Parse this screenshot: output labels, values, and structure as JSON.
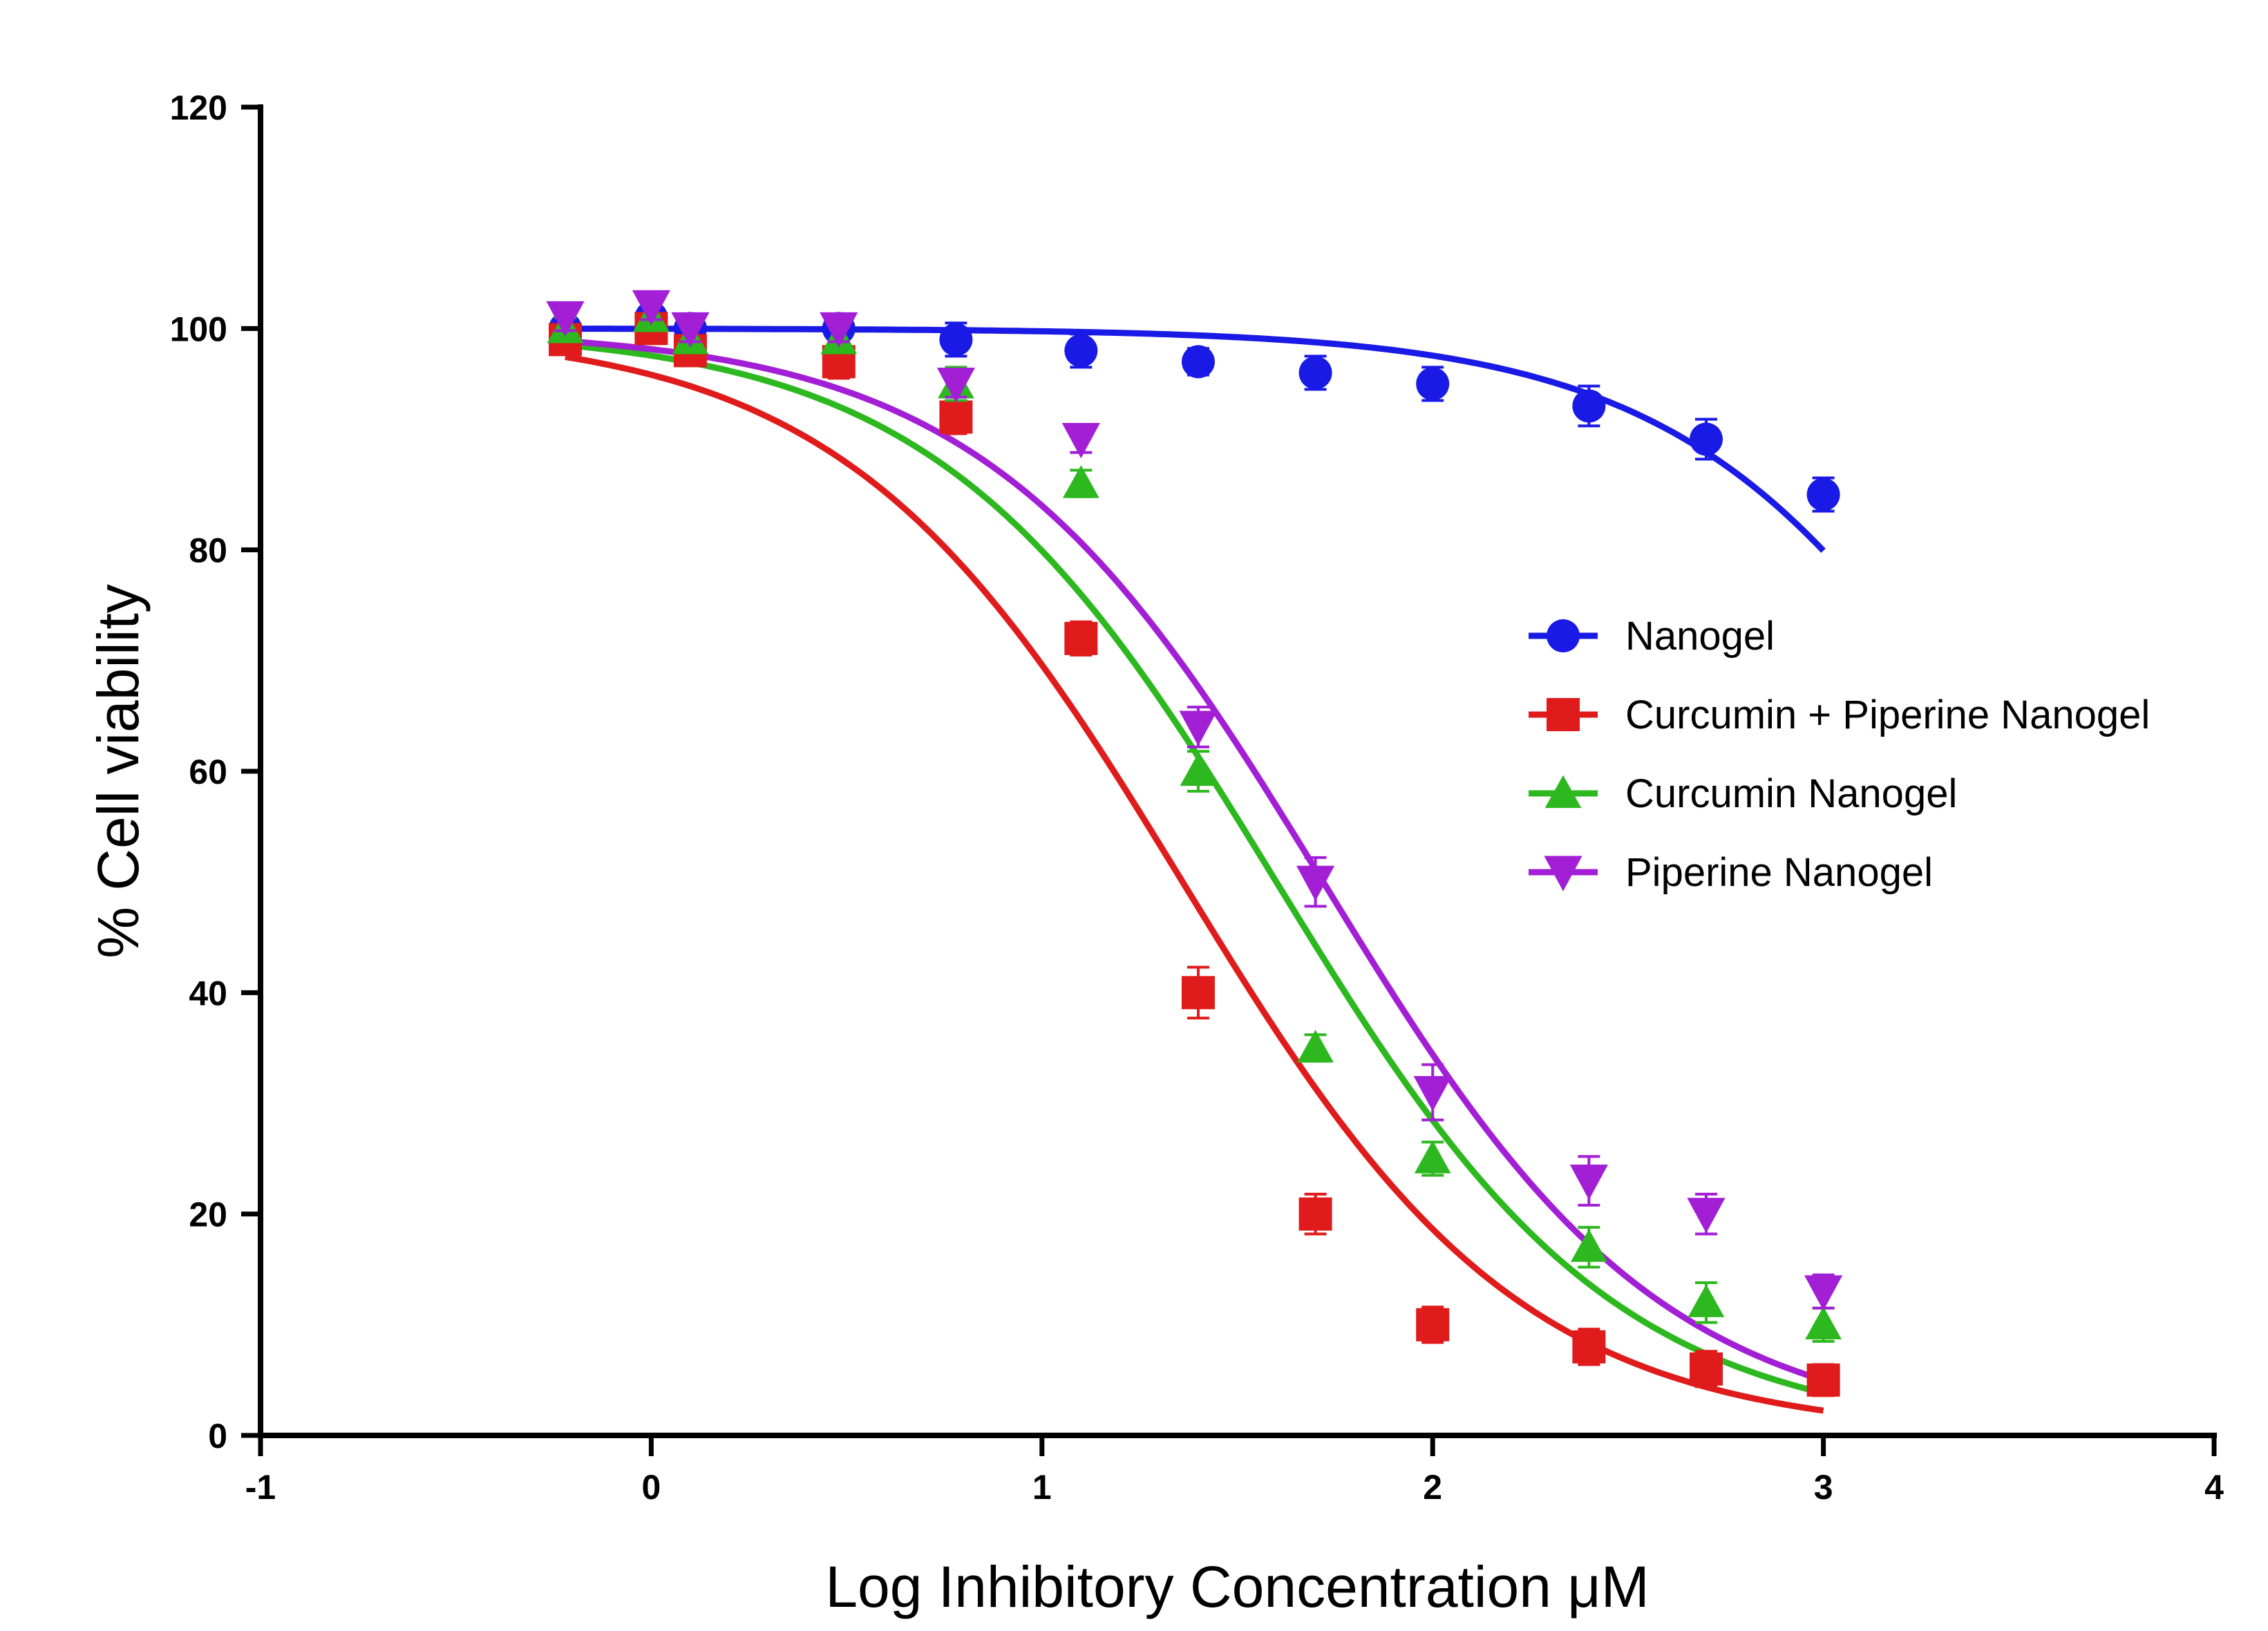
{
  "chart_data": {
    "type": "scatter",
    "title": "",
    "xlabel": "Log Inhibitory Concentration μM",
    "ylabel": "% Cell viability",
    "xlim": [
      -1,
      4
    ],
    "ylim": [
      0,
      120
    ],
    "x_ticks": [
      -1,
      0,
      1,
      2,
      3,
      4
    ],
    "y_ticks": [
      0,
      20,
      40,
      60,
      80,
      100,
      120
    ],
    "grid": false,
    "legend_position": "right-middle",
    "series": [
      {
        "name": "Nanogel",
        "color": "#1a1ae6",
        "marker": "circle",
        "x": [
          -0.22,
          0,
          0.1,
          0.48,
          0.78,
          1.1,
          1.4,
          1.7,
          2.0,
          2.4,
          2.7,
          3.0
        ],
        "y": [
          100,
          101,
          100,
          100,
          99,
          98,
          97,
          96,
          95,
          93,
          90,
          85
        ],
        "error": [
          1,
          1.5,
          1.2,
          1,
          1.5,
          1.5,
          1.2,
          1.5,
          1.5,
          1.8,
          1.8,
          1.5
        ],
        "fit": {
          "top": 100,
          "bottom": 0,
          "logIC50": 3.6,
          "hill": 1.0,
          "x_from": -0.22,
          "x_to": 3.0
        }
      },
      {
        "name": "Curcumin + Piperine Nanogel",
        "color": "#e01b1b",
        "marker": "square",
        "x": [
          -0.22,
          0,
          0.1,
          0.48,
          0.78,
          1.1,
          1.4,
          1.7,
          2.0,
          2.4,
          2.7,
          3.0
        ],
        "y": [
          99,
          100,
          98,
          97,
          92,
          72,
          40,
          20,
          10,
          8,
          6,
          5
        ],
        "error": [
          1,
          1.2,
          1.2,
          1.5,
          1.5,
          1.5,
          2.3,
          1.8,
          1.6,
          1.6,
          1.6,
          1.4
        ],
        "fit": {
          "top": 100,
          "bottom": 0,
          "logIC50": 1.36,
          "hill": 1.0,
          "x_from": -0.22,
          "x_to": 3.0
        }
      },
      {
        "name": "Curcumin Nanogel",
        "color": "#2db81f",
        "marker": "triangle-up",
        "x": [
          -0.22,
          0,
          0.1,
          0.48,
          0.78,
          1.1,
          1.4,
          1.7,
          2.0,
          2.4,
          2.7,
          3.0
        ],
        "y": [
          100,
          101,
          99,
          99,
          95,
          86,
          60,
          35,
          25,
          17,
          12,
          10
        ],
        "error": [
          1,
          1.2,
          1.2,
          1.2,
          1.5,
          1.2,
          1.8,
          1.2,
          1.5,
          1.8,
          1.8,
          1.5
        ],
        "fit": {
          "top": 100,
          "bottom": 0,
          "logIC50": 1.6,
          "hill": 1.0,
          "x_from": -0.22,
          "x_to": 3.0
        }
      },
      {
        "name": "Piperine Nanogel",
        "color": "#a21fd6",
        "marker": "triangle-down",
        "x": [
          -0.22,
          0,
          0.1,
          0.48,
          0.78,
          1.1,
          1.4,
          1.7,
          2.0,
          2.4,
          2.7,
          3.0
        ],
        "y": [
          101,
          102,
          100,
          100,
          95,
          90,
          64,
          50,
          31,
          23,
          20,
          13
        ],
        "error": [
          1.2,
          1.2,
          1.2,
          1.2,
          1.2,
          1.2,
          1.8,
          2.2,
          2.5,
          2.2,
          1.8,
          1.5
        ],
        "fit": {
          "top": 100,
          "bottom": 0,
          "logIC50": 1.72,
          "hill": 1.0,
          "x_from": -0.22,
          "x_to": 3.0
        }
      }
    ]
  }
}
